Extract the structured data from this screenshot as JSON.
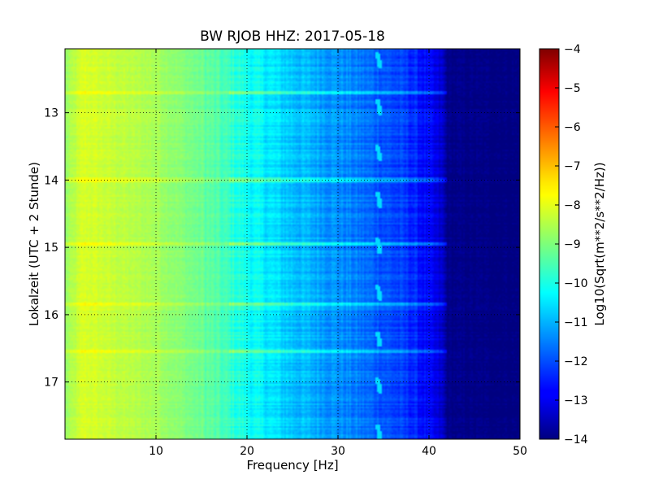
{
  "chart_data": {
    "type": "heatmap",
    "title": "BW RJOB HHZ: 2017-05-18",
    "xlabel": "Frequency [Hz]",
    "ylabel": "Lokalzeit (UTC + 2 Stunde)",
    "xlim": [
      0,
      50
    ],
    "ylim": [
      12.05,
      17.85
    ],
    "y_inverted": true,
    "x_ticks": [
      "10",
      "20",
      "30",
      "40",
      "50"
    ],
    "y_ticks": [
      "13",
      "14",
      "15",
      "16",
      "17"
    ],
    "grid": true,
    "colorscale": "jet",
    "colorbar": {
      "label": "Log10(Sqrt(m**2/s**2/Hz))",
      "range": [
        -14,
        -4
      ],
      "ticks": [
        "-4",
        "-5",
        "-6",
        "-7",
        "-8",
        "-9",
        "-10",
        "-11",
        "-12",
        "-13",
        "-14"
      ]
    },
    "spectrum_profile": {
      "frequency_hz": [
        0,
        2,
        5,
        10,
        15,
        18,
        20,
        25,
        30,
        35,
        38,
        40,
        41.5,
        42,
        50
      ],
      "log10_amplitude": [
        -8.8,
        -8.1,
        -8.3,
        -8.6,
        -9.2,
        -9.7,
        -10.1,
        -10.8,
        -11.3,
        -11.9,
        -12.3,
        -12.8,
        -13.3,
        -13.9,
        -14.0
      ]
    },
    "spectral_line": {
      "frequency_hz": 34.5,
      "log10_amplitude": -10.6
    },
    "broadband_noise_times": [
      12.7,
      14.0,
      14.95,
      15.85,
      16.55
    ]
  }
}
